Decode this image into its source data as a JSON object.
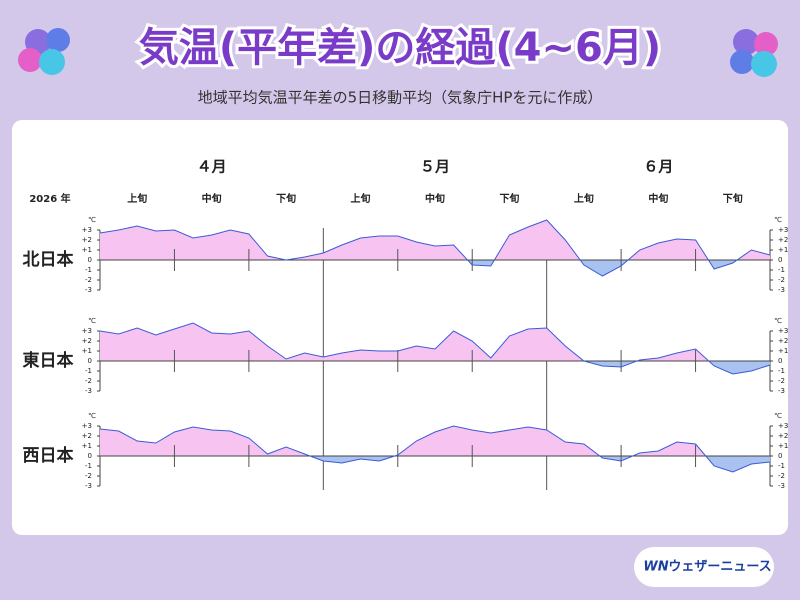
{
  "header": {
    "title": "気温(平年差)の経過(4~6月)",
    "subtitle": "地域平均気温平年差の5日移動平均（気象庁HPを元に作成）"
  },
  "axis": {
    "year": "2026 年",
    "months": [
      "４月",
      "５月",
      "６月"
    ],
    "decades": [
      "上旬",
      "中旬",
      "下旬",
      "上旬",
      "中旬",
      "下旬",
      "上旬",
      "中旬",
      "下旬"
    ]
  },
  "chart_data": [
    {
      "type": "area",
      "title": "北日本",
      "unit": "℃",
      "positive_color": "#f7c4f2",
      "negative_color": "#a9c2ef",
      "line_color": "#3b5bd6",
      "ylim": [
        -3,
        3
      ],
      "yticks": [
        {
          "value": 3,
          "label": "+3"
        },
        {
          "value": 2,
          "label": "+2"
        },
        {
          "value": 1,
          "label": "+1"
        },
        0,
        -1,
        -2,
        -3
      ],
      "values": [
        2.7,
        3.0,
        3.4,
        2.9,
        3.0,
        2.2,
        2.5,
        3.0,
        2.6,
        0.4,
        0.0,
        0.3,
        0.7,
        1.5,
        2.2,
        2.4,
        2.4,
        1.8,
        1.4,
        1.5,
        -0.5,
        -0.6,
        2.5,
        3.3,
        4.0,
        2.0,
        -0.5,
        -1.6,
        -0.6,
        1.0,
        1.7,
        2.1,
        2.0,
        -0.9,
        -0.3,
        1.0,
        0.5
      ]
    },
    {
      "type": "area",
      "title": "東日本",
      "unit": "℃",
      "positive_color": "#f7c4f2",
      "negative_color": "#a9c2ef",
      "line_color": "#3b5bd6",
      "ylim": [
        -3,
        3
      ],
      "yticks": [
        {
          "value": 3,
          "label": "+3"
        },
        {
          "value": 2,
          "label": "+2"
        },
        {
          "value": 1,
          "label": "+1"
        },
        0,
        -1,
        -2,
        -3
      ],
      "values": [
        3.0,
        2.7,
        3.3,
        2.6,
        3.2,
        3.8,
        2.8,
        2.7,
        3.0,
        1.5,
        0.2,
        0.8,
        0.4,
        0.8,
        1.1,
        1.0,
        1.0,
        1.5,
        1.2,
        3.0,
        2.0,
        0.3,
        2.5,
        3.2,
        3.3,
        1.5,
        0.0,
        -0.5,
        -0.6,
        0.1,
        0.3,
        0.8,
        1.2,
        -0.5,
        -1.3,
        -1.0,
        -0.4
      ]
    },
    {
      "type": "area",
      "title": "西日本",
      "unit": "℃",
      "positive_color": "#f7c4f2",
      "negative_color": "#a9c2ef",
      "line_color": "#3b5bd6",
      "ylim": [
        -3,
        3
      ],
      "yticks": [
        {
          "value": 3,
          "label": "+3"
        },
        {
          "value": 2,
          "label": "+2"
        },
        {
          "value": 1,
          "label": "+1"
        },
        0,
        -1,
        -2,
        -3
      ],
      "values": [
        2.7,
        2.5,
        1.5,
        1.3,
        2.4,
        2.9,
        2.6,
        2.5,
        1.8,
        0.2,
        0.9,
        0.2,
        -0.5,
        -0.7,
        -0.3,
        -0.5,
        0.1,
        1.5,
        2.4,
        3.0,
        2.6,
        2.3,
        2.6,
        2.9,
        2.6,
        1.4,
        1.2,
        -0.2,
        -0.5,
        0.3,
        0.5,
        1.4,
        1.2,
        -1.0,
        -1.6,
        -0.8,
        -0.6
      ]
    }
  ],
  "logo": {
    "mark": "WN",
    "text": "ウェザーニュース"
  }
}
